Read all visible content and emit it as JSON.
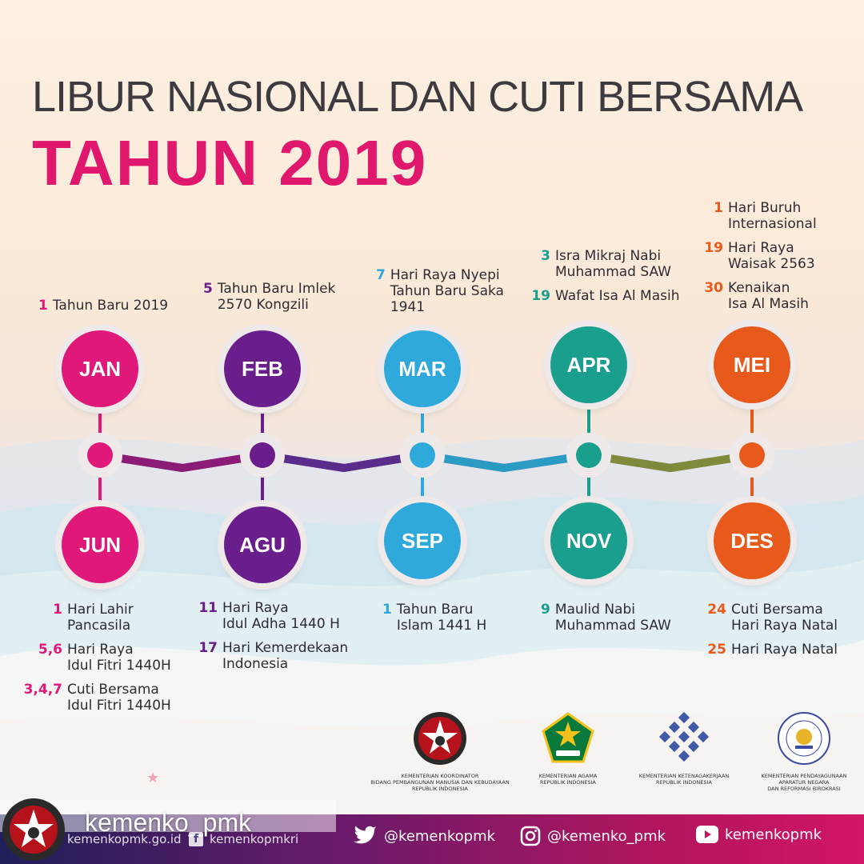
{
  "title": {
    "line1": "LIBUR NASIONAL DAN CUTI BERSAMA",
    "line2": "TAHUN 2019"
  },
  "colors": {
    "jan": "#e0187a",
    "feb": "#6a1e8c",
    "mar": "#2fa8dc",
    "apr": "#1a9e8e",
    "mei": "#e85a1c",
    "jun": "#e0187a",
    "agu": "#6a1e8c",
    "sep": "#2fa8dc",
    "nov": "#1a9e8e",
    "des": "#e85a1c"
  },
  "months_top": [
    {
      "label": "JAN",
      "notes": [
        {
          "num": "1",
          "text": "Tahun Baru 2019"
        }
      ]
    },
    {
      "label": "FEB",
      "notes": [
        {
          "num": "5",
          "text": "Tahun Baru Imlek\n2570 Kongzili"
        }
      ]
    },
    {
      "label": "MAR",
      "notes": [
        {
          "num": "7",
          "text": "Hari Raya Nyepi\nTahun Baru Saka\n1941"
        }
      ]
    },
    {
      "label": "APR",
      "notes": [
        {
          "num": "3",
          "text": "Isra Mikraj Nabi\nMuhammad SAW"
        },
        {
          "num": "19",
          "text": "Wafat Isa Al Masih"
        }
      ]
    },
    {
      "label": "MEI",
      "notes": [
        {
          "num": "1",
          "text": "Hari Buruh\nInternasional"
        },
        {
          "num": "19",
          "text": "Hari Raya\nWaisak 2563"
        },
        {
          "num": "30",
          "text": "Kenaikan\nIsa Al Masih"
        }
      ]
    }
  ],
  "months_bottom": [
    {
      "label": "JUN",
      "notes": [
        {
          "num": "1",
          "text": "Hari Lahir\nPancasila"
        },
        {
          "num": "5,6",
          "text": "Hari Raya\nIdul Fitri 1440H"
        },
        {
          "num": "3,4,7",
          "text": "Cuti Bersama\nIdul Fitri 1440H"
        }
      ]
    },
    {
      "label": "AGU",
      "notes": [
        {
          "num": "11",
          "text": "Hari Raya\nIdul Adha 1440 H"
        },
        {
          "num": "17",
          "text": "Hari Kemerdekaan\nIndonesia"
        }
      ]
    },
    {
      "label": "SEP",
      "notes": [
        {
          "num": "1",
          "text": "Tahun Baru\nIslam 1441 H"
        }
      ]
    },
    {
      "label": "NOV",
      "notes": [
        {
          "num": "9",
          "text": "Maulid Nabi\nMuhammad SAW"
        }
      ]
    },
    {
      "label": "DES",
      "notes": [
        {
          "num": "24",
          "text": "Cuti Bersama\nHari Raya Natal"
        },
        {
          "num": "25",
          "text": "Hari Raya Natal"
        }
      ]
    }
  ],
  "logos": [
    {
      "caption": "KEMENTERIAN KOORDINATOR\nBIDANG PEMBANGUNAN MANUSIA DAN KEBUDAYAAN\nREPUBLIK INDONESIA"
    },
    {
      "caption": "KEMENTERIAN AGAMA\nREPUBLIK INDONESIA"
    },
    {
      "caption": "KEMENTERIAN KETENAGAKERJAAN\nREPUBLIK INDONESIA"
    },
    {
      "caption": "KEMENTERIAN PENDAYAGUNAAN\nAPARATUR NEGARA\nDAN REFORMASI BIROKRASI"
    }
  ],
  "footer": {
    "handle": "kemenko_pmk",
    "website": "kemenkopmk.go.id",
    "facebook": "kemenkopmkri",
    "twitter": "@kemenkopmk",
    "instagram": "@kemenko_pmk",
    "youtube": "kemenkopmk"
  }
}
